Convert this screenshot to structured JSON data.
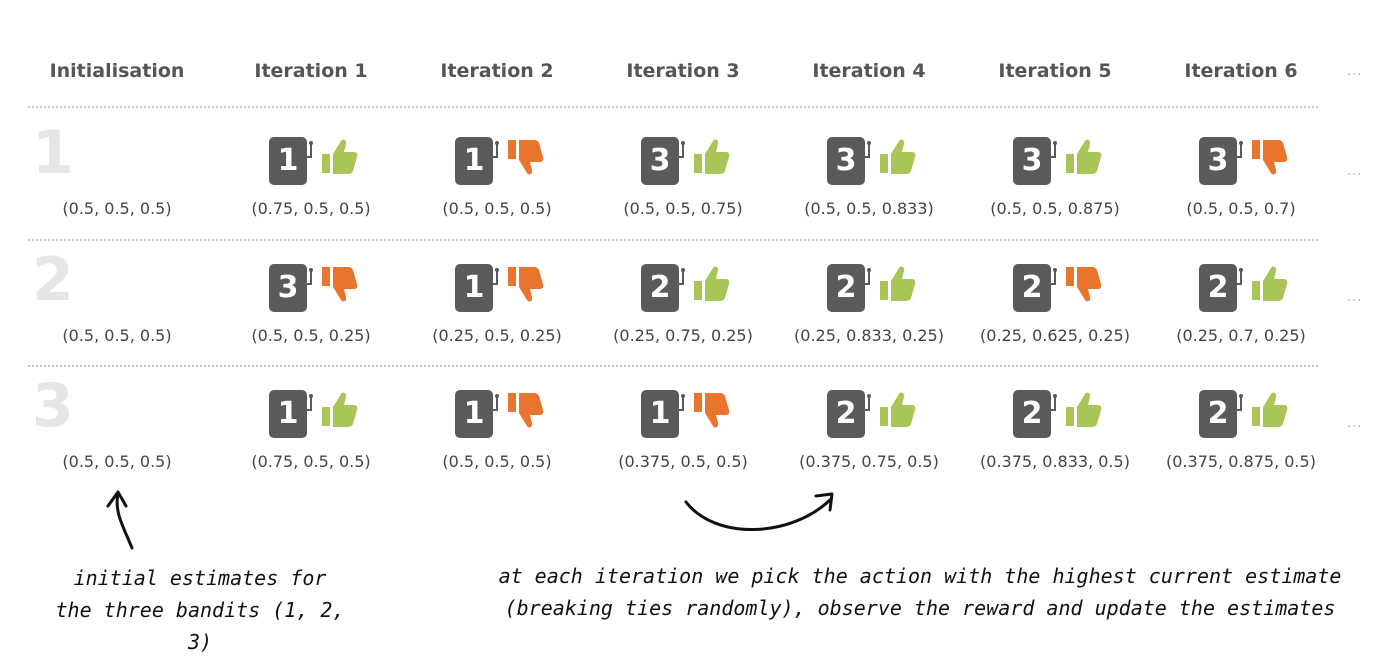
{
  "headers": [
    "Initialisation",
    "Iteration 1",
    "Iteration 2",
    "Iteration 3",
    "Iteration 4",
    "Iteration 5",
    "Iteration 6"
  ],
  "ellipsis": "...",
  "rows": [
    {
      "label": "1",
      "init": "(0.5, 0.5, 0.5)",
      "iterations": [
        {
          "bandit": "1",
          "reward": "up",
          "estimate": "(0.75, 0.5, 0.5)"
        },
        {
          "bandit": "1",
          "reward": "down",
          "estimate": "(0.5, 0.5, 0.5)"
        },
        {
          "bandit": "3",
          "reward": "up",
          "estimate": "(0.5, 0.5, 0.75)"
        },
        {
          "bandit": "3",
          "reward": "up",
          "estimate": "(0.5, 0.5, 0.833)"
        },
        {
          "bandit": "3",
          "reward": "up",
          "estimate": "(0.5, 0.5, 0.875)"
        },
        {
          "bandit": "3",
          "reward": "down",
          "estimate": "(0.5, 0.5, 0.7)"
        }
      ]
    },
    {
      "label": "2",
      "init": "(0.5, 0.5, 0.5)",
      "iterations": [
        {
          "bandit": "3",
          "reward": "down",
          "estimate": "(0.5, 0.5, 0.25)"
        },
        {
          "bandit": "1",
          "reward": "down",
          "estimate": "(0.25, 0.5, 0.25)"
        },
        {
          "bandit": "2",
          "reward": "up",
          "estimate": "(0.25, 0.75, 0.25)"
        },
        {
          "bandit": "2",
          "reward": "up",
          "estimate": "(0.25, 0.833, 0.25)"
        },
        {
          "bandit": "2",
          "reward": "down",
          "estimate": "(0.25, 0.625, 0.25)"
        },
        {
          "bandit": "2",
          "reward": "up",
          "estimate": "(0.25, 0.7, 0.25)"
        }
      ]
    },
    {
      "label": "3",
      "init": "(0.5, 0.5, 0.5)",
      "iterations": [
        {
          "bandit": "1",
          "reward": "up",
          "estimate": "(0.75, 0.5, 0.5)"
        },
        {
          "bandit": "1",
          "reward": "down",
          "estimate": "(0.5, 0.5, 0.5)"
        },
        {
          "bandit": "1",
          "reward": "down",
          "estimate": "(0.375, 0.5, 0.5)"
        },
        {
          "bandit": "2",
          "reward": "up",
          "estimate": "(0.375, 0.75, 0.5)"
        },
        {
          "bandit": "2",
          "reward": "up",
          "estimate": "(0.375, 0.833, 0.5)"
        },
        {
          "bandit": "2",
          "reward": "up",
          "estimate": "(0.375, 0.875, 0.5)"
        }
      ]
    }
  ],
  "notes": {
    "left_line1": "initial estimates for",
    "left_line2": "the three bandits (1, 2, 3)",
    "right_line1": "at each iteration we pick the action with the highest current estimate",
    "right_line2": "(breaking ties randomly), observe the reward and update the estimates"
  },
  "colors": {
    "up": "#a8c657",
    "down": "#e8742e",
    "machine": "#5a5a5a",
    "row_label": "#e6e6e6"
  }
}
